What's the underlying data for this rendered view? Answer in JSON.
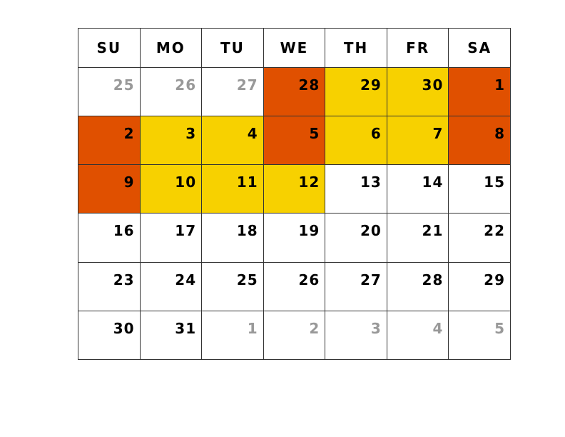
{
  "calendar": {
    "weekdays": [
      "SU",
      "MO",
      "TU",
      "WE",
      "TH",
      "FR",
      "SA"
    ],
    "colors": {
      "orange": "#e05000",
      "yellow": "#f7d100",
      "outside_text": "#999999",
      "text": "#000000"
    },
    "weeks": [
      [
        {
          "day": "25",
          "outside": true
        },
        {
          "day": "26",
          "outside": true
        },
        {
          "day": "27",
          "outside": true
        },
        {
          "day": "28",
          "highlight": "orange"
        },
        {
          "day": "29",
          "highlight": "yellow"
        },
        {
          "day": "30",
          "highlight": "yellow"
        },
        {
          "day": "1",
          "highlight": "orange"
        }
      ],
      [
        {
          "day": "2",
          "highlight": "orange"
        },
        {
          "day": "3",
          "highlight": "yellow"
        },
        {
          "day": "4",
          "highlight": "yellow"
        },
        {
          "day": "5",
          "highlight": "orange"
        },
        {
          "day": "6",
          "highlight": "yellow"
        },
        {
          "day": "7",
          "highlight": "yellow"
        },
        {
          "day": "8",
          "highlight": "orange"
        }
      ],
      [
        {
          "day": "9",
          "highlight": "orange"
        },
        {
          "day": "10",
          "highlight": "yellow"
        },
        {
          "day": "11",
          "highlight": "yellow"
        },
        {
          "day": "12",
          "highlight": "yellow"
        },
        {
          "day": "13"
        },
        {
          "day": "14"
        },
        {
          "day": "15"
        }
      ],
      [
        {
          "day": "16"
        },
        {
          "day": "17"
        },
        {
          "day": "18"
        },
        {
          "day": "19"
        },
        {
          "day": "20"
        },
        {
          "day": "21"
        },
        {
          "day": "22"
        }
      ],
      [
        {
          "day": "23"
        },
        {
          "day": "24"
        },
        {
          "day": "25"
        },
        {
          "day": "26"
        },
        {
          "day": "27"
        },
        {
          "day": "28"
        },
        {
          "day": "29"
        }
      ],
      [
        {
          "day": "30"
        },
        {
          "day": "31"
        },
        {
          "day": "1",
          "outside": true
        },
        {
          "day": "2",
          "outside": true
        },
        {
          "day": "3",
          "outside": true
        },
        {
          "day": "4",
          "outside": true
        },
        {
          "day": "5",
          "outside": true
        }
      ]
    ]
  }
}
